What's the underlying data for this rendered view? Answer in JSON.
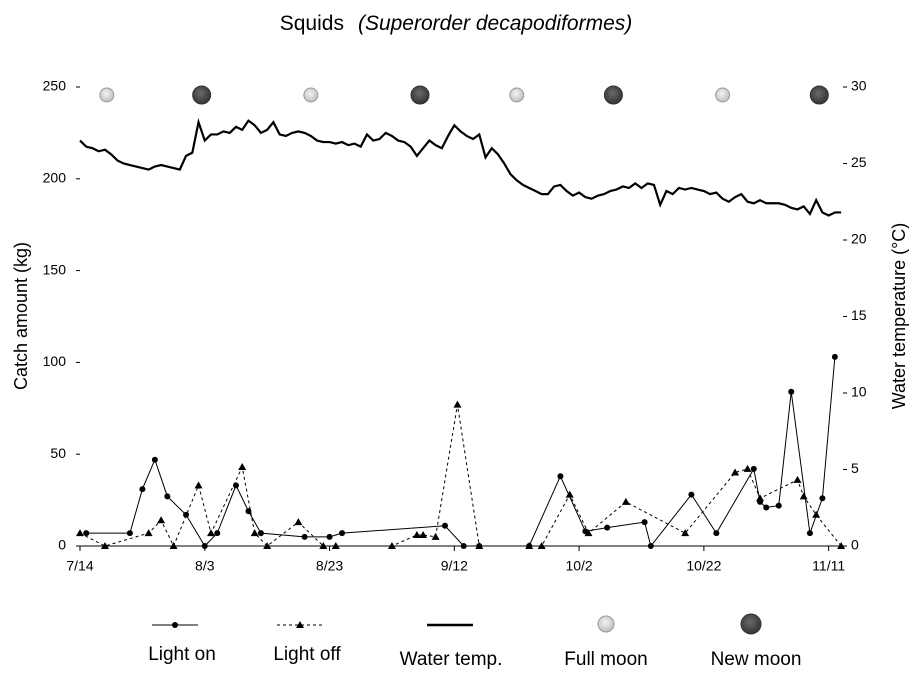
{
  "chart_data": {
    "type": "line",
    "title": {
      "common": "Squids",
      "scientific": "(Superorder decapodiformes)"
    },
    "y_label": "Catch amount (kg)",
    "y2_label": "Water temperature (°C)",
    "xlim": [
      0,
      122.3
    ],
    "xticks": [
      {
        "value": 0,
        "label": "7/14"
      },
      {
        "value": 20,
        "label": "8/3"
      },
      {
        "value": 40,
        "label": "8/23"
      },
      {
        "value": 60,
        "label": "9/12"
      },
      {
        "value": 80,
        "label": "10/2"
      },
      {
        "value": 100,
        "label": "10/22"
      },
      {
        "value": 120,
        "label": "11/11"
      }
    ],
    "ylim": [
      0,
      250
    ],
    "yticks": [
      0,
      50,
      100,
      150,
      200,
      250
    ],
    "y2lim": [
      0,
      30
    ],
    "y2ticks": [
      0,
      5,
      10,
      15,
      20,
      25,
      30
    ],
    "series": [
      {
        "name": "Light on",
        "color": "#000000",
        "marker": "circle",
        "dash": false,
        "x": [
          1,
          8,
          10,
          12,
          14,
          17,
          20,
          22,
          25,
          27,
          29,
          36,
          40,
          42,
          58.5,
          61.5,
          64,
          72,
          77,
          81,
          84.5,
          90.5,
          91.5,
          98,
          102,
          108,
          109,
          110,
          112,
          114,
          117,
          119,
          121
        ],
        "values": [
          7,
          7,
          31,
          47,
          27,
          17,
          0,
          7,
          33,
          19,
          7,
          5,
          5,
          7,
          11,
          0,
          0,
          0,
          38,
          8,
          10,
          13,
          0,
          28,
          7,
          42,
          24,
          21,
          22,
          84,
          7,
          26,
          103
        ]
      },
      {
        "name": "Light off",
        "color": "#000000",
        "marker": "triangle",
        "dash": true,
        "x": [
          0,
          4,
          11,
          13,
          15,
          19,
          21,
          26,
          28,
          30,
          35,
          39,
          41,
          50,
          54,
          55,
          57,
          60.5,
          64,
          72,
          74,
          78.5,
          81.5,
          87.5,
          97,
          105,
          107,
          109,
          115,
          116,
          118,
          122
        ],
        "values": [
          7,
          0,
          7,
          14,
          0,
          33,
          7,
          43,
          7,
          0,
          13,
          0,
          0,
          0,
          6,
          6,
          5,
          77,
          0,
          0,
          0,
          28,
          7,
          24,
          7,
          40,
          42,
          26,
          36,
          27,
          17,
          0
        ]
      },
      {
        "name": "Water temp.",
        "color": "#000000",
        "marker": "none",
        "dash": false,
        "axis": "y2",
        "x": [
          0,
          1,
          2,
          3,
          4,
          5,
          6,
          7,
          8,
          9,
          10,
          11,
          12,
          13,
          14,
          15,
          16,
          17,
          18,
          19,
          20,
          21,
          22,
          23,
          24,
          25,
          26,
          27,
          28,
          29,
          30,
          31,
          32,
          33,
          34,
          35,
          36,
          37,
          38,
          39,
          40,
          41,
          42,
          43,
          44,
          45,
          46,
          47,
          48,
          49,
          50,
          51,
          52,
          53,
          54,
          55,
          56,
          57,
          58,
          59,
          60,
          61,
          62,
          63,
          64,
          65,
          66,
          67,
          68,
          69,
          70,
          71,
          72,
          73,
          74,
          75,
          76,
          77,
          78,
          79,
          80,
          81,
          82,
          83,
          84,
          85,
          86,
          87,
          88,
          89,
          90,
          91,
          92,
          93,
          94,
          95,
          96,
          97,
          98,
          99,
          100,
          101,
          102,
          103,
          104,
          105,
          106,
          107,
          108,
          109,
          110,
          111,
          112,
          113,
          114,
          115,
          116,
          117,
          118,
          119,
          120,
          121,
          122
        ],
        "values": [
          26.5,
          26.1,
          26.0,
          25.8,
          25.9,
          25.6,
          25.2,
          25.0,
          24.9,
          24.8,
          24.7,
          24.6,
          24.8,
          24.9,
          24.8,
          24.7,
          24.6,
          25.5,
          25.7,
          27.7,
          26.5,
          26.9,
          26.9,
          27.1,
          27.0,
          27.4,
          27.2,
          27.8,
          27.5,
          27.0,
          27.2,
          27.7,
          26.9,
          26.8,
          27.0,
          27.1,
          27.0,
          26.8,
          26.5,
          26.4,
          26.4,
          26.3,
          26.4,
          26.2,
          26.3,
          26.1,
          26.9,
          26.5,
          26.6,
          27.0,
          26.8,
          26.5,
          26.4,
          26.1,
          25.5,
          26.0,
          26.5,
          26.2,
          26.0,
          26.8,
          27.5,
          27.1,
          26.8,
          26.6,
          26.9,
          25.4,
          26.0,
          25.6,
          25.0,
          24.3,
          23.9,
          23.6,
          23.4,
          23.2,
          23.0,
          23.0,
          23.5,
          23.6,
          23.2,
          22.9,
          23.1,
          22.8,
          22.7,
          22.9,
          23.0,
          23.2,
          23.3,
          23.5,
          23.4,
          23.7,
          23.4,
          23.7,
          23.6,
          22.3,
          23.2,
          23.0,
          23.4,
          23.3,
          23.4,
          23.3,
          23.2,
          23.0,
          23.1,
          22.7,
          22.5,
          22.8,
          23.0,
          22.5,
          22.4,
          22.6,
          22.4,
          22.4,
          22.4,
          22.3,
          22.1,
          22.0,
          22.2,
          21.7,
          22.6,
          21.8,
          21.6,
          21.8,
          21.8
        ]
      }
    ],
    "moons": [
      {
        "name": "Full moon",
        "color": "#e0e0e0",
        "x": [
          4.3,
          37,
          70,
          103
        ]
      },
      {
        "name": "New moon",
        "color": "#555555",
        "x": [
          19.5,
          54.5,
          85.5,
          118.5
        ]
      }
    ]
  }
}
